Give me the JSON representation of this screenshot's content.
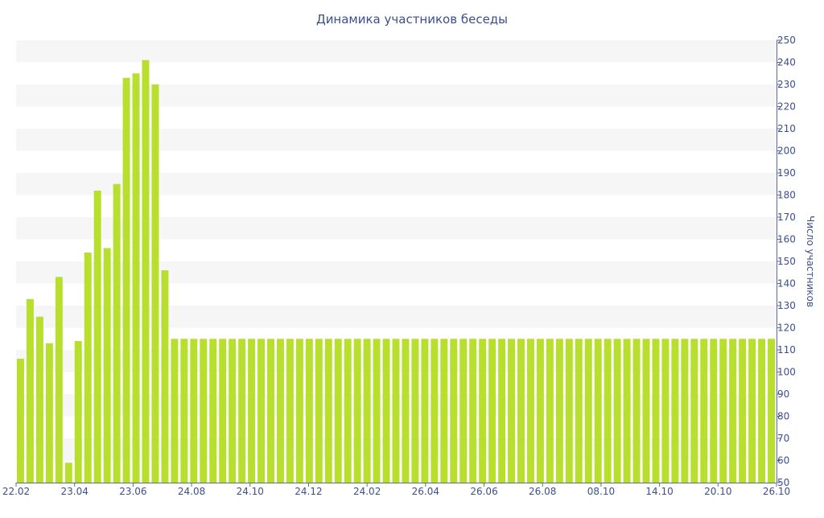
{
  "chart_data": {
    "type": "bar",
    "title": "Динамика участников беседы",
    "xlabel": "",
    "ylabel": "Число участников",
    "ylim": [
      50,
      250
    ],
    "y_ticks": [
      50,
      60,
      70,
      80,
      90,
      100,
      110,
      120,
      130,
      140,
      150,
      160,
      170,
      180,
      190,
      200,
      210,
      220,
      230,
      240,
      250
    ],
    "x_tick_labels": [
      "22.02",
      "23.04",
      "23.06",
      "24.08",
      "24.10",
      "24.12",
      "24.02",
      "26.04",
      "26.06",
      "26.08",
      "08.10",
      "14.10",
      "20.10",
      "26.10"
    ],
    "values": [
      106,
      133,
      125,
      113,
      143,
      59,
      114,
      154,
      182,
      156,
      185,
      233,
      235,
      241,
      230,
      146,
      115,
      115,
      115,
      115,
      115,
      115,
      115,
      115,
      115,
      115,
      115,
      115,
      115,
      115,
      115,
      115,
      115,
      115,
      115,
      115,
      115,
      115,
      115,
      115,
      115,
      115,
      115,
      115,
      115,
      115,
      115,
      115,
      115,
      115,
      115,
      115,
      115,
      115,
      115,
      115,
      115,
      115,
      115,
      115,
      115,
      115,
      115,
      115,
      115,
      115,
      115,
      115,
      115,
      115,
      115,
      115,
      115,
      115,
      115,
      115,
      115,
      115,
      115
    ],
    "bar_color": "#b9df2e",
    "band_color": "#f6f6f6",
    "text_color": "#3c4f8c",
    "axis_color": "#5a6b99",
    "grid": "alternating horizontal bands",
    "y_axis_side": "right",
    "legend": "none"
  }
}
